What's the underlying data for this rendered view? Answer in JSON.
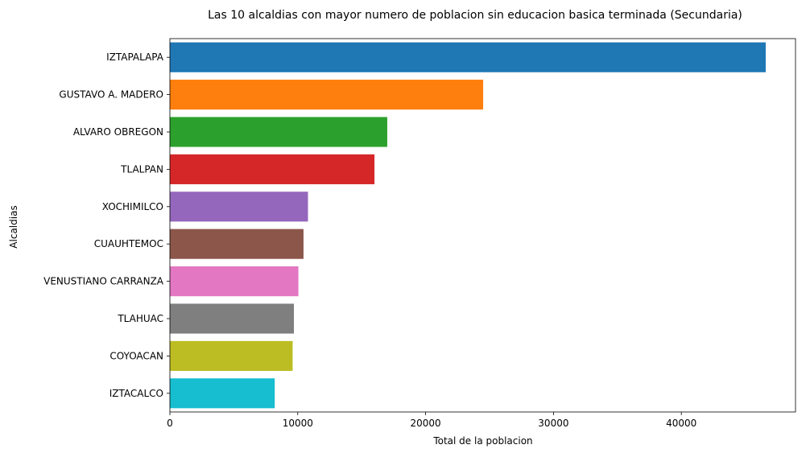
{
  "chart_data": {
    "type": "bar",
    "orientation": "horizontal",
    "title": "Las 10 alcaldias con mayor numero de poblacion sin educacion basica terminada (Secundaria)",
    "xlabel": "Total de la poblacion",
    "ylabel": "Alcaldias",
    "categories": [
      "IZTAPALAPA",
      "GUSTAVO A. MADERO",
      "ALVARO OBREGON",
      "TLALPAN",
      "XOCHIMILCO",
      "CUAUHTEMOC",
      "VENUSTIANO CARRANZA",
      "TLAHUAC",
      "COYOACAN",
      "IZTACALCO"
    ],
    "values": [
      46600,
      24500,
      17000,
      16000,
      10800,
      10450,
      10050,
      9700,
      9600,
      8200
    ],
    "colors": [
      "#1f77b4",
      "#ff7f0e",
      "#2ca02c",
      "#d62728",
      "#9467bd",
      "#8c564b",
      "#e377c2",
      "#7f7f7f",
      "#bcbd22",
      "#17becf"
    ],
    "xlim": [
      0,
      48930
    ],
    "xticks": [
      0,
      10000,
      20000,
      30000,
      40000
    ],
    "xtick_labels": [
      "0",
      "10000",
      "20000",
      "30000",
      "40000"
    ],
    "grid": false,
    "legend": "none"
  }
}
